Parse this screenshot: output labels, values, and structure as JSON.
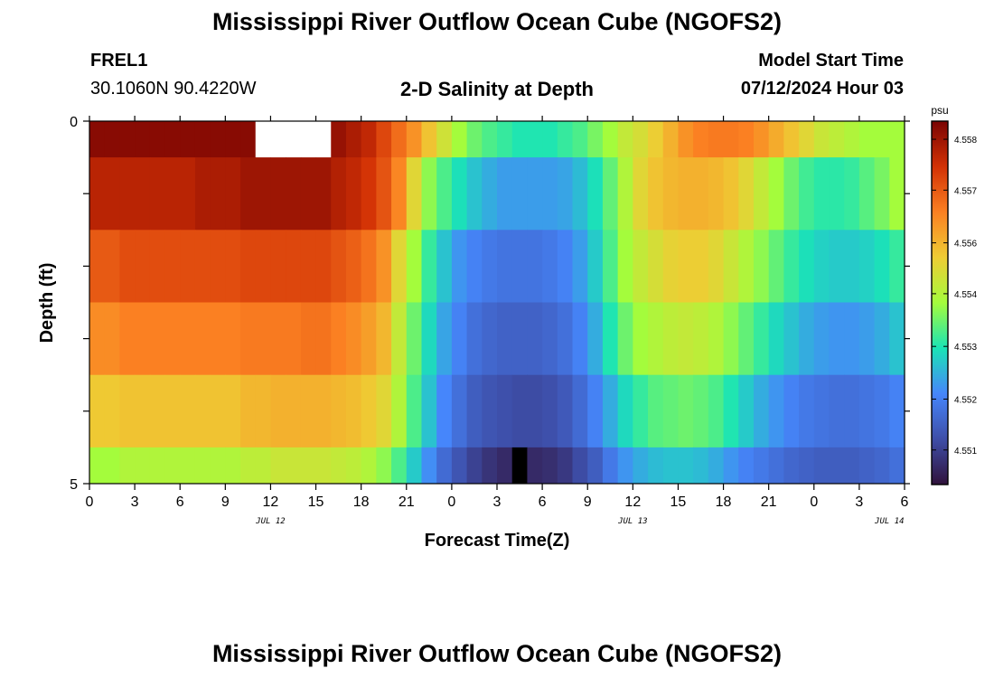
{
  "header": {
    "title": "Mississippi River Outflow Ocean Cube (NGOFS2)",
    "station_id": "FREL1",
    "coords": "30.1060N  90.4220W",
    "subtitle": "2-D Salinity at Depth",
    "model_start_label": "Model Start Time",
    "model_start_value": "07/12/2024 Hour 03"
  },
  "footer": {
    "title": "Mississippi River Outflow Ocean Cube (NGOFS2)"
  },
  "chart_data": {
    "type": "heatmap",
    "title": "2-D Salinity at Depth",
    "xlabel": "Forecast Time(Z)",
    "ylabel": "Depth (ft)",
    "xlim_hours": [
      0,
      54
    ],
    "ylim": [
      0,
      5
    ],
    "x_tick_labels": [
      "0",
      "3",
      "6",
      "9",
      "12",
      "15",
      "18",
      "21",
      "0",
      "3",
      "6",
      "9",
      "12",
      "15",
      "18",
      "21",
      "0",
      "3",
      "6"
    ],
    "y_tick_labels": [
      "0",
      "5"
    ],
    "date_labels": [
      "JUL 12",
      "JUL 13",
      "JUL 14"
    ],
    "colorbar": {
      "unit": "psu",
      "ticks": [
        "4.558",
        "4.557",
        "4.556",
        "4.554",
        "4.553",
        "4.552",
        "4.551"
      ],
      "colors": [
        "#30123b",
        "#3e4ea8",
        "#4686fb",
        "#1ae4b6",
        "#a4fc3c",
        "#efcc34",
        "#fb8022",
        "#d23105",
        "#7a0403"
      ]
    },
    "depth_levels": [
      "0-0.5 ft",
      "0.5-1.5 ft",
      "1.5-2.5 ft",
      "2.5-3.5 ft",
      "3.5-4.5 ft",
      "4.5-5 ft"
    ],
    "hours_per_column": 1,
    "salinity_normalized": [
      [
        0.98,
        0.98,
        0.98,
        0.98,
        0.98,
        0.98,
        0.98,
        0.98,
        0.98,
        0.98,
        0.98,
        null,
        null,
        null,
        null,
        null,
        0.96,
        0.93,
        0.9,
        0.84,
        0.78,
        0.72,
        0.64,
        0.57,
        0.5,
        0.45,
        0.42,
        0.4,
        0.38,
        0.38,
        0.38,
        0.4,
        0.42,
        0.46,
        0.5,
        0.55,
        0.58,
        0.62,
        0.67,
        0.72,
        0.75,
        0.76,
        0.76,
        0.75,
        0.72,
        0.68,
        0.64,
        0.6,
        0.56,
        0.54,
        0.52,
        0.5,
        0.5,
        0.5
      ],
      [
        0.91,
        0.91,
        0.91,
        0.91,
        0.91,
        0.91,
        0.91,
        0.93,
        0.93,
        0.93,
        0.95,
        0.95,
        0.95,
        0.95,
        0.95,
        0.95,
        0.92,
        0.9,
        0.87,
        0.82,
        0.74,
        0.6,
        0.48,
        0.42,
        0.37,
        0.33,
        0.3,
        0.28,
        0.28,
        0.28,
        0.28,
        0.29,
        0.32,
        0.37,
        0.44,
        0.52,
        0.6,
        0.64,
        0.66,
        0.67,
        0.67,
        0.66,
        0.64,
        0.6,
        0.55,
        0.5,
        0.45,
        0.41,
        0.39,
        0.39,
        0.4,
        0.43,
        0.46,
        0.5
      ],
      [
        0.81,
        0.81,
        0.83,
        0.83,
        0.83,
        0.83,
        0.83,
        0.83,
        0.83,
        0.83,
        0.84,
        0.84,
        0.84,
        0.84,
        0.84,
        0.84,
        0.82,
        0.8,
        0.77,
        0.72,
        0.6,
        0.5,
        0.4,
        0.33,
        0.27,
        0.24,
        0.22,
        0.21,
        0.21,
        0.21,
        0.22,
        0.24,
        0.28,
        0.34,
        0.42,
        0.5,
        0.55,
        0.58,
        0.61,
        0.62,
        0.62,
        0.6,
        0.56,
        0.52,
        0.48,
        0.44,
        0.4,
        0.37,
        0.35,
        0.34,
        0.34,
        0.35,
        0.37,
        0.4
      ],
      [
        0.73,
        0.73,
        0.75,
        0.75,
        0.75,
        0.75,
        0.75,
        0.75,
        0.75,
        0.75,
        0.76,
        0.76,
        0.76,
        0.76,
        0.77,
        0.77,
        0.75,
        0.73,
        0.7,
        0.66,
        0.55,
        0.45,
        0.36,
        0.29,
        0.24,
        0.2,
        0.18,
        0.17,
        0.17,
        0.17,
        0.18,
        0.2,
        0.24,
        0.3,
        0.38,
        0.45,
        0.5,
        0.52,
        0.54,
        0.55,
        0.54,
        0.52,
        0.48,
        0.44,
        0.4,
        0.36,
        0.33,
        0.3,
        0.28,
        0.27,
        0.27,
        0.28,
        0.3,
        0.33
      ],
      [
        0.63,
        0.63,
        0.64,
        0.64,
        0.64,
        0.64,
        0.64,
        0.64,
        0.64,
        0.64,
        0.66,
        0.66,
        0.67,
        0.67,
        0.67,
        0.67,
        0.66,
        0.65,
        0.63,
        0.6,
        0.52,
        0.42,
        0.33,
        0.25,
        0.2,
        0.16,
        0.14,
        0.13,
        0.12,
        0.12,
        0.13,
        0.15,
        0.19,
        0.24,
        0.3,
        0.36,
        0.4,
        0.43,
        0.44,
        0.45,
        0.44,
        0.42,
        0.38,
        0.34,
        0.3,
        0.27,
        0.24,
        0.22,
        0.21,
        0.2,
        0.2,
        0.21,
        0.22,
        0.24
      ],
      [
        0.5,
        0.5,
        0.52,
        0.52,
        0.52,
        0.52,
        0.52,
        0.52,
        0.52,
        0.52,
        0.54,
        0.54,
        0.56,
        0.56,
        0.56,
        0.56,
        0.55,
        0.54,
        0.52,
        0.48,
        0.42,
        0.34,
        0.26,
        0.19,
        0.14,
        0.1,
        0.07,
        0.05,
        null,
        0.05,
        0.06,
        0.08,
        0.12,
        0.16,
        0.22,
        0.27,
        0.3,
        0.32,
        0.33,
        0.33,
        0.32,
        0.3,
        0.27,
        0.24,
        0.22,
        0.2,
        0.18,
        0.17,
        0.16,
        0.16,
        0.16,
        0.17,
        0.18,
        0.2
      ]
    ],
    "masked_cells_color": {
      "level_0_hours_11_15": "#ffffff",
      "level_5_hour_28": "#000000"
    }
  }
}
